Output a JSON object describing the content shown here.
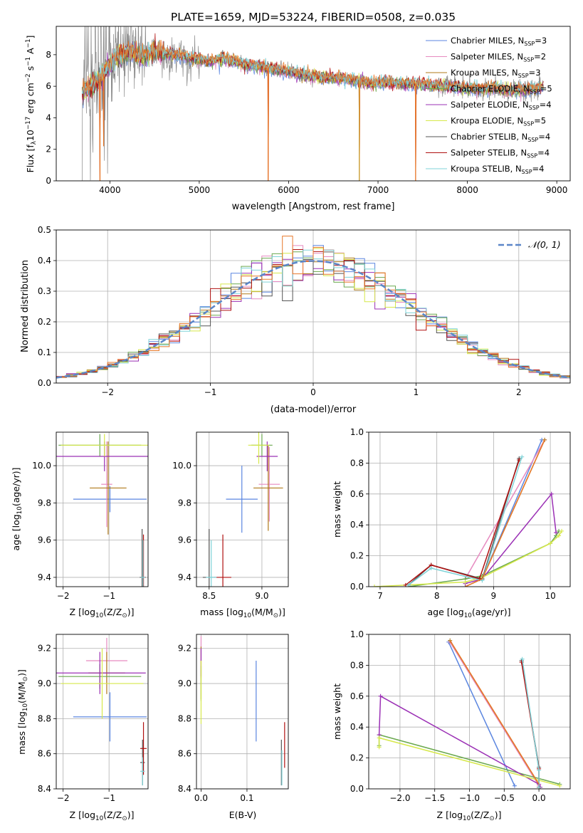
{
  "figure": {
    "title": "PLATE=1659, MJD=53224, FIBERID=0508, z=0.035"
  },
  "colors": {
    "Chabrier MILES": "#5b86e0",
    "Salpeter MILES": "#e68ac0",
    "Kroupa MILES": "#b07a1a",
    "Chabrier ELODIE": "#6aa84f",
    "Salpeter ELODIE": "#9b30b5",
    "Kroupa ELODIE": "#d6e84a",
    "Chabrier STELIB": "#555555",
    "Salpeter STELIB": "#b01010",
    "Kroupa STELIB": "#7fd3d8",
    "orange": "#e8782a",
    "gray_data": "#888888"
  },
  "chart_data": [
    {
      "id": "spectrum",
      "type": "line",
      "xlabel": "wavelength [Angstrom, rest frame]",
      "ylabel_parts": [
        "Flux [f",
        "λ",
        "10",
        "−17",
        " erg cm",
        "−2",
        " s",
        "−1",
        " A",
        "−1",
        "]"
      ],
      "xlim": [
        3400,
        9150
      ],
      "ylim": [
        0,
        9.8
      ],
      "xticks": [
        4000,
        5000,
        6000,
        7000,
        8000,
        9000
      ],
      "yticks": [
        0,
        2,
        4,
        6,
        8
      ],
      "legend": [
        {
          "name": "Chabrier MILES",
          "sub": "3"
        },
        {
          "name": "Salpeter MILES",
          "sub": "2"
        },
        {
          "name": "Kroupa MILES",
          "sub": "3"
        },
        {
          "name": "Chabrier ELODIE",
          "sub": "5"
        },
        {
          "name": "Salpeter ELODIE",
          "sub": "4"
        },
        {
          "name": "Kroupa ELODIE",
          "sub": "5"
        },
        {
          "name": "Chabrier STELIB",
          "sub": "4"
        },
        {
          "name": "Salpeter STELIB",
          "sub": "4"
        },
        {
          "name": "Kroupa STELIB",
          "sub": "4"
        }
      ],
      "legend_label_N": "N",
      "legend_label_ssp": "SSP",
      "continuum": {
        "x": [
          3690,
          3800,
          3900,
          4000,
          4100,
          4200,
          4300,
          4400,
          4500,
          4700,
          4900,
          5100,
          5300,
          5500,
          5700,
          5900,
          6100,
          6300,
          6500,
          6700,
          6900,
          7100,
          7300,
          7500,
          7700,
          7900,
          8100,
          8300,
          8500,
          8700,
          8850
        ],
        "y": [
          5.6,
          6.0,
          6.5,
          7.4,
          7.9,
          8.1,
          8.0,
          7.9,
          8.2,
          8.0,
          7.8,
          7.6,
          7.7,
          7.4,
          7.2,
          7.0,
          6.8,
          6.6,
          6.5,
          6.4,
          6.2,
          6.2,
          6.1,
          6.1,
          6.0,
          5.9,
          5.8,
          5.9,
          5.7,
          5.8,
          5.9
        ]
      },
      "dips": [
        {
          "x": 3890,
          "y": 0
        },
        {
          "x": 3930,
          "y": 2.2
        },
        {
          "x": 5770,
          "y": 0
        },
        {
          "x": 6790,
          "y": 0
        },
        {
          "x": 7420,
          "y": 0
        }
      ]
    },
    {
      "id": "residuals",
      "type": "bar",
      "xlabel": "(data-model)/error",
      "ylabel": "Normed distribution",
      "xlim": [
        -2.5,
        2.5
      ],
      "ylim": [
        0,
        0.5
      ],
      "xticks": [
        -2,
        -1,
        0,
        1,
        2
      ],
      "yticks": [
        0.0,
        0.1,
        0.2,
        0.3,
        0.4,
        0.5
      ],
      "bin_width": 0.1,
      "legend": [
        {
          "name": "𝒩(0, 1)",
          "style": "dashed"
        }
      ],
      "gaussian": {
        "mu": 0,
        "sigma": 1
      }
    },
    {
      "id": "age_vs_Z",
      "type": "scatter",
      "xlabel_parts": [
        "Z [log",
        "10",
        "(Z/Z",
        "⊙",
        ")]"
      ],
      "ylabel_parts": [
        "age  [log",
        "10",
        "(age/yr)]"
      ],
      "xlim": [
        -2.15,
        -0.15
      ],
      "ylim": [
        9.35,
        10.18
      ],
      "xticks": [
        -2,
        -1
      ],
      "yticks": [
        9.4,
        9.6,
        9.8,
        10.0
      ],
      "points": [
        {
          "model": "Chabrier MILES",
          "x": -0.98,
          "y": 9.82,
          "xerr": 0.8,
          "yerr": 0.07
        },
        {
          "model": "Salpeter MILES",
          "x": -1.05,
          "y": 9.9,
          "xerr": 0.12,
          "yerr": 0.23
        },
        {
          "model": "Kroupa MILES",
          "x": -1.02,
          "y": 9.88,
          "xerr": 0.4,
          "yerr": 0.25
        },
        {
          "model": "Chabrier ELODIE",
          "x": -1.2,
          "y": 10.11,
          "xerr": 0.9,
          "yerr": 0.06
        },
        {
          "model": "Salpeter ELODIE",
          "x": -1.1,
          "y": 10.05,
          "xerr": 1.05,
          "yerr": 0.08
        },
        {
          "model": "Kroupa ELODIE",
          "x": -1.1,
          "y": 10.11,
          "xerr": 0.95,
          "yerr": 0.06
        },
        {
          "model": "Chabrier STELIB",
          "x": -0.28,
          "y": 9.4,
          "xerr": 0.05,
          "yerr": 0.26
        },
        {
          "model": "Salpeter STELIB",
          "x": -0.25,
          "y": 9.4,
          "xerr": 0.05,
          "yerr": 0.23
        },
        {
          "model": "Kroupa STELIB",
          "x": -0.26,
          "y": 9.4,
          "xerr": 0.05,
          "yerr": 0.2
        }
      ]
    },
    {
      "id": "age_vs_mass",
      "type": "scatter",
      "xlabel_parts": [
        "mass [log",
        "10",
        "(M/M",
        "⊙",
        ")]"
      ],
      "xlim": [
        8.38,
        9.25
      ],
      "ylim": [
        9.35,
        10.18
      ],
      "xticks": [
        8.5,
        9.0
      ],
      "yticks": [
        9.4,
        9.6,
        9.8,
        10.0
      ],
      "points": [
        {
          "model": "Chabrier MILES",
          "x": 8.81,
          "y": 9.82,
          "xerr": 0.15,
          "yerr": 0.18
        },
        {
          "model": "Salpeter MILES",
          "x": 9.07,
          "y": 9.9,
          "xerr": 0.1,
          "yerr": 0.2
        },
        {
          "model": "Kroupa MILES",
          "x": 9.06,
          "y": 9.88,
          "xerr": 0.14,
          "yerr": 0.23
        },
        {
          "model": "Chabrier ELODIE",
          "x": 9.0,
          "y": 10.11,
          "xerr": 0.1,
          "yerr": 0.06
        },
        {
          "model": "Salpeter ELODIE",
          "x": 9.05,
          "y": 10.05,
          "xerr": 0.1,
          "yerr": 0.08
        },
        {
          "model": "Kroupa ELODIE",
          "x": 8.97,
          "y": 10.11,
          "xerr": 0.1,
          "yerr": 0.1
        },
        {
          "model": "Chabrier STELIB",
          "x": 8.5,
          "y": 9.4,
          "xerr": 0.06,
          "yerr": 0.26
        },
        {
          "model": "Salpeter STELIB",
          "x": 8.63,
          "y": 9.4,
          "xerr": 0.08,
          "yerr": 0.23
        },
        {
          "model": "Kroupa STELIB",
          "x": 8.52,
          "y": 9.4,
          "xerr": 0.05,
          "yerr": 0.2
        }
      ]
    },
    {
      "id": "weight_vs_age",
      "type": "line",
      "xlabel_parts": [
        "age  [log",
        "10",
        "(age/yr)]"
      ],
      "ylabel": "mass weight",
      "xlim": [
        6.8,
        10.35
      ],
      "ylim": [
        0,
        1.0
      ],
      "xticks": [
        7,
        8,
        9,
        10
      ],
      "yticks": [
        0.0,
        0.2,
        0.4,
        0.6,
        0.8,
        1.0
      ],
      "series": [
        {
          "model": "Chabrier MILES",
          "x": [
            8.8,
            9.85
          ],
          "y": [
            0.05,
            0.95
          ]
        },
        {
          "model": "Salpeter MILES",
          "x": [
            8.5,
            9.9
          ],
          "y": [
            0.05,
            0.95
          ]
        },
        {
          "model": "Kroupa MILES",
          "x": [
            8.5,
            8.8,
            9.9
          ],
          "y": [
            0.0,
            0.05,
            0.95
          ]
        },
        {
          "model": "Chabrier ELODIE",
          "x": [
            7.5,
            8.5,
            8.8,
            10.0,
            10.1,
            10.15
          ],
          "y": [
            0.0,
            0.05,
            0.07,
            0.28,
            0.33,
            0.36
          ]
        },
        {
          "model": "Salpeter ELODIE",
          "x": [
            8.5,
            8.8,
            10.02,
            10.1
          ],
          "y": [
            0.02,
            0.05,
            0.6,
            0.35
          ]
        },
        {
          "model": "Kroupa ELODIE",
          "x": [
            6.9,
            8.5,
            8.8,
            10.0,
            10.15,
            10.2
          ],
          "y": [
            0.0,
            0.03,
            0.06,
            0.28,
            0.33,
            0.36
          ]
        },
        {
          "model": "Chabrier STELIB",
          "x": [
            7.5,
            7.9,
            8.8,
            9.45
          ],
          "y": [
            0.01,
            0.14,
            0.05,
            0.83
          ]
        },
        {
          "model": "Salpeter STELIB",
          "x": [
            7.45,
            7.9,
            8.75,
            9.45
          ],
          "y": [
            0.01,
            0.14,
            0.05,
            0.82
          ]
        },
        {
          "model": "Kroupa STELIB",
          "x": [
            7.5,
            7.9,
            8.8,
            9.5
          ],
          "y": [
            0.01,
            0.12,
            0.04,
            0.84
          ]
        }
      ]
    },
    {
      "id": "mass_vs_Z",
      "type": "scatter",
      "xlabel_parts": [
        "Z [log",
        "10",
        "(Z/Z",
        "⊙",
        ")]"
      ],
      "ylabel_parts": [
        "mass [log",
        "10",
        "(M/M",
        "⊙",
        ")]"
      ],
      "xlim": [
        -2.15,
        -0.15
      ],
      "ylim": [
        8.4,
        9.28
      ],
      "xticks": [
        -2,
        -1
      ],
      "yticks": [
        8.4,
        8.6,
        8.8,
        9.0,
        9.2
      ],
      "points": [
        {
          "model": "Chabrier MILES",
          "x": -0.98,
          "y": 8.81,
          "xerr": 0.8,
          "yerr": 0.14
        },
        {
          "model": "Salpeter MILES",
          "x": -1.05,
          "y": 9.13,
          "xerr": 0.45,
          "yerr": 0.13
        },
        {
          "model": "Kroupa MILES",
          "x": -1.05,
          "y": 9.06,
          "xerr": 0.4,
          "yerr": 0.12
        },
        {
          "model": "Chabrier ELODIE",
          "x": -1.2,
          "y": 9.04,
          "xerr": 0.9,
          "yerr": 0.07
        },
        {
          "model": "Salpeter ELODIE",
          "x": -1.2,
          "y": 9.06,
          "xerr": 1.0,
          "yerr": 0.12
        },
        {
          "model": "Kroupa ELODIE",
          "x": -1.15,
          "y": 9.0,
          "xerr": 0.9,
          "yerr": 0.2
        },
        {
          "model": "Chabrier STELIB",
          "x": -0.27,
          "y": 8.55,
          "xerr": 0.05,
          "yerr": 0.13
        },
        {
          "model": "Salpeter STELIB",
          "x": -0.25,
          "y": 8.63,
          "xerr": 0.07,
          "yerr": 0.15
        },
        {
          "model": "Kroupa STELIB",
          "x": -0.27,
          "y": 8.5,
          "xerr": 0.05,
          "yerr": 0.08
        }
      ]
    },
    {
      "id": "mass_vs_ebv",
      "type": "scatter",
      "xlabel": "E(B-V)",
      "xlim": [
        -0.01,
        0.19
      ],
      "ylim": [
        8.4,
        9.28
      ],
      "xticks": [
        0.0,
        0.1
      ],
      "yticks": [
        8.4,
        8.6,
        8.8,
        9.0,
        9.2
      ],
      "points": [
        {
          "model": "Chabrier MILES",
          "x": 0.12,
          "y": 8.9,
          "xerr": 0,
          "yerr": 0.23
        },
        {
          "model": "Salpeter MILES",
          "x": 0.0,
          "y": 9.15,
          "xerr": 0,
          "yerr": 0.12
        },
        {
          "model": "Kroupa MILES",
          "x": 0.0,
          "y": 9.06,
          "xerr": 0,
          "yerr": 0.15
        },
        {
          "model": "Chabrier ELODIE",
          "x": 0.0,
          "y": 9.0,
          "xerr": 0,
          "yerr": 0.1
        },
        {
          "model": "Salpeter ELODIE",
          "x": 0.0,
          "y": 9.12,
          "xerr": 0,
          "yerr": 0.08
        },
        {
          "model": "Kroupa ELODIE",
          "x": 0.0,
          "y": 8.95,
          "xerr": 0,
          "yerr": 0.18
        },
        {
          "model": "Chabrier STELIB",
          "x": 0.175,
          "y": 8.55,
          "xerr": 0,
          "yerr": 0.13
        },
        {
          "model": "Salpeter STELIB",
          "x": 0.182,
          "y": 8.65,
          "xerr": 0,
          "yerr": 0.13
        },
        {
          "model": "Kroupa STELIB",
          "x": 0.176,
          "y": 8.52,
          "xerr": 0,
          "yerr": 0.1
        }
      ]
    },
    {
      "id": "weight_vs_Z",
      "type": "line",
      "xlabel_parts": [
        "Z [log",
        "10",
        "(Z/Z",
        "⊙",
        ")]"
      ],
      "ylabel": "mass weight",
      "xlim": [
        -2.45,
        0.45
      ],
      "ylim": [
        0,
        1.0
      ],
      "xticks": [
        -2.0,
        -1.5,
        -1.0,
        -0.5,
        0.0
      ],
      "xticklabels": [
        "−2.0",
        "−1.5",
        "−1.0",
        "−0.5",
        "0.0"
      ],
      "yticks": [
        0.0,
        0.2,
        0.4,
        0.6,
        0.8,
        1.0
      ],
      "series": [
        {
          "model": "Chabrier MILES",
          "x": [
            -1.3,
            -0.35
          ],
          "y": [
            0.95,
            0.02
          ]
        },
        {
          "model": "Salpeter MILES",
          "x": [
            -1.28,
            0.0
          ],
          "y": [
            0.95,
            0.02
          ]
        },
        {
          "model": "Kroupa MILES",
          "x": [
            -1.28,
            0.0
          ],
          "y": [
            0.96,
            0.03
          ]
        },
        {
          "model": "Chabrier ELODIE",
          "x": [
            -2.3,
            -2.3,
            0.3
          ],
          "y": [
            0.28,
            0.35,
            0.03
          ]
        },
        {
          "model": "Salpeter ELODIE",
          "x": [
            -2.3,
            -2.28,
            0.0,
            0.02
          ],
          "y": [
            0.35,
            0.6,
            0.03,
            0.01
          ]
        },
        {
          "model": "Kroupa ELODIE",
          "x": [
            -2.3,
            -2.3,
            0.3
          ],
          "y": [
            0.27,
            0.33,
            0.02
          ]
        },
        {
          "model": "Chabrier STELIB",
          "x": [
            -0.25,
            0.0,
            0.0
          ],
          "y": [
            0.83,
            0.14,
            0.01
          ]
        },
        {
          "model": "Salpeter STELIB",
          "x": [
            -0.25,
            0.0,
            0.0
          ],
          "y": [
            0.82,
            0.13,
            0.01
          ]
        },
        {
          "model": "Kroupa STELIB",
          "x": [
            -0.24,
            0.0,
            0.0
          ],
          "y": [
            0.84,
            0.12,
            0.01
          ]
        }
      ]
    }
  ]
}
